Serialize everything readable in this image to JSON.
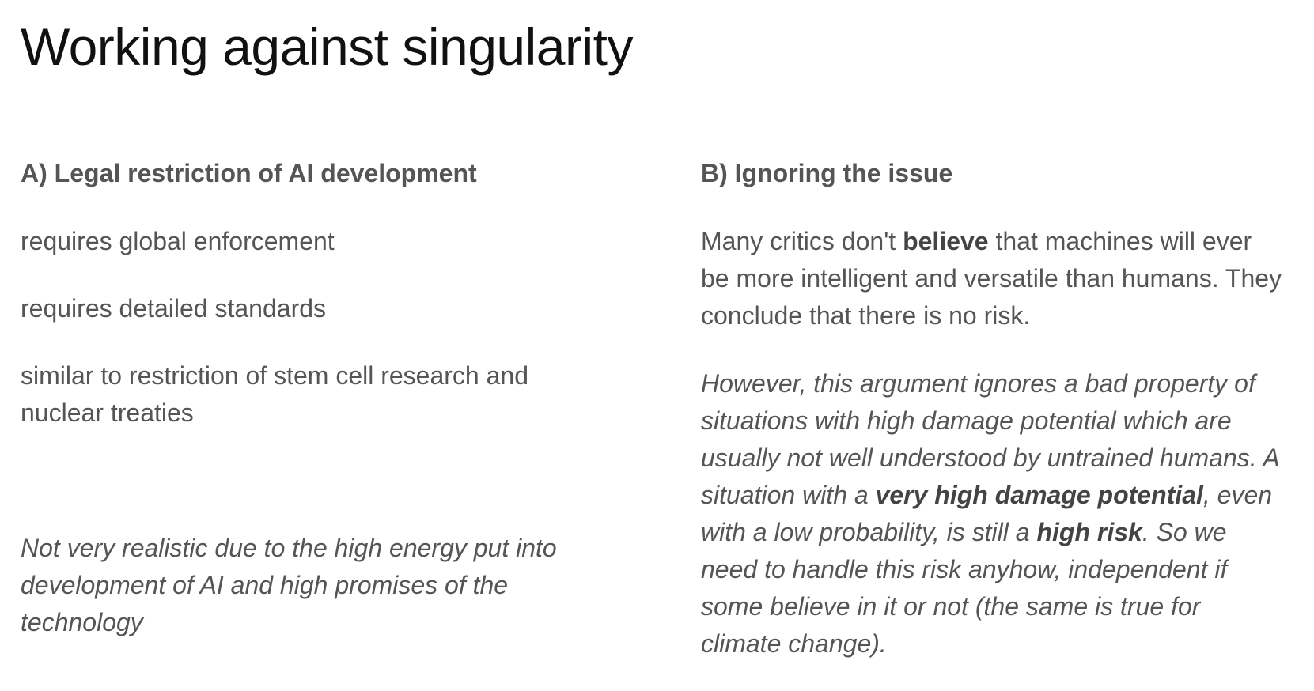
{
  "slide": {
    "title": "Working against singularity"
  },
  "column_a": {
    "heading": "A) Legal restriction of AI development",
    "points": [
      "requires global enforcement",
      "requires detailed standards",
      "similar to restriction of stem cell research and nuclear treaties"
    ],
    "conclusion": "Not very realistic due to the high energy put into development of AI and high promises of the technology"
  },
  "column_b": {
    "heading": "B) Ignoring the issue",
    "para1": {
      "part1": "Many critics don't ",
      "bold1": "believe",
      "part2": " that machines will ever be more intelligent and versatile than humans. They conclude that there is no risk."
    },
    "para2": {
      "part1": "However, this argument ignores a bad property of situations with high damage potential which are usually not well understood by untrained humans. A situation with a ",
      "bold1": "very high damage potential",
      "part2": ", even with a low probability, is still a ",
      "bold2": "high risk",
      "part3": ". So we need to handle this risk anyhow, independent if some believe in it or not (the same is true for climate change)."
    }
  }
}
